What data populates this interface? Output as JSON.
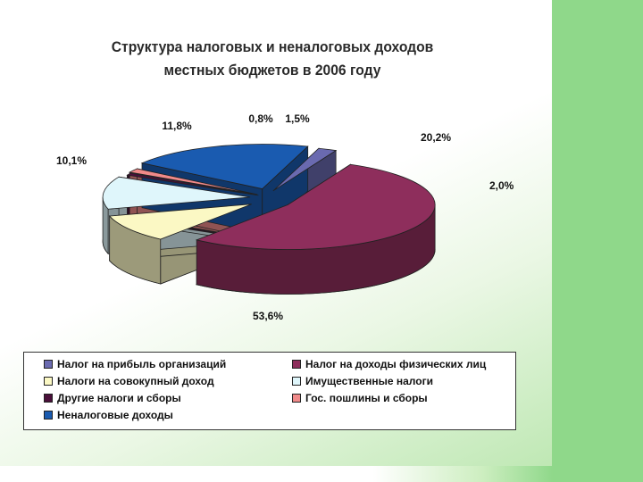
{
  "chart_data": {
    "type": "pie",
    "title": "Структура налоговых и неналоговых доходов местных бюджетов в 2006 году",
    "title_lines": [
      "Структура налоговых и неналоговых доходов",
      "местных бюджетов в 2006 году"
    ],
    "three_d": true,
    "exploded": true,
    "legend_position": "bottom",
    "slices": [
      {
        "name": "Налог на прибыль организаций",
        "value": 2.0,
        "label": "2,0%",
        "color": "#6a6ab0"
      },
      {
        "name": "Налог на доходы физических лиц",
        "value": 53.6,
        "label": "53,6%",
        "color": "#8e2e5c"
      },
      {
        "name": "Налоги на совокупный доход",
        "value": 10.1,
        "label": "10,1%",
        "color": "#fbf8c4"
      },
      {
        "name": "Имущественные налоги",
        "value": 11.8,
        "label": "11,8%",
        "color": "#dff6fb"
      },
      {
        "name": "Другие налоги и сборы",
        "value": 0.8,
        "label": "0,8%",
        "color": "#4a0f3a"
      },
      {
        "name": "Гос. пошлины и сборы",
        "value": 1.5,
        "label": "1,5%",
        "color": "#f08a8a"
      },
      {
        "name": "Неналоговые доходы",
        "value": 20.2,
        "label": "20,2%",
        "color": "#1a5bb0"
      }
    ]
  }
}
